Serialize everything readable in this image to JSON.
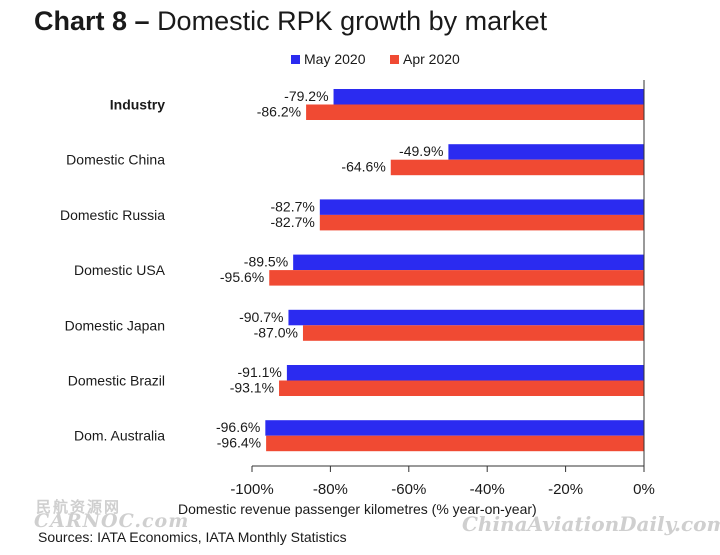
{
  "title": {
    "prefix": "Chart 8 –",
    "text": "Domestic RPK growth by market"
  },
  "sources": "Sources: IATA Economics, IATA Monthly Statistics",
  "watermarks": {
    "cn": "民航资源网",
    "carnoc": "CARNOC.com",
    "site": "ChinaAviationDaily.com"
  },
  "colors": {
    "may": "#2b2bf0",
    "apr": "#f04a33",
    "axis": "#333333",
    "text": "#1a1a1a"
  },
  "chart_data": {
    "type": "bar",
    "orientation": "horizontal",
    "xlabel": "Domestic revenue passenger kilometres (% year-on-year)",
    "xlim": [
      -100,
      0
    ],
    "xticks": [
      -100,
      -80,
      -60,
      -40,
      -20,
      0
    ],
    "xtick_labels": [
      "-100%",
      "-80%",
      "-60%",
      "-40%",
      "-20%",
      "0%"
    ],
    "legend_position": "top",
    "categories": [
      "Industry",
      "Domestic China",
      "Domestic Russia",
      "Domestic USA",
      "Domestic Japan",
      "Domestic Brazil",
      "Dom. Australia"
    ],
    "bold_categories": [
      "Industry"
    ],
    "series": [
      {
        "name": "May 2020",
        "color_key": "may",
        "values": [
          -79.2,
          -49.9,
          -82.7,
          -89.5,
          -90.7,
          -91.1,
          -96.6
        ],
        "labels": [
          "-79.2%",
          "-49.9%",
          "-82.7%",
          "-89.5%",
          "-90.7%",
          "-91.1%",
          "-96.6%"
        ]
      },
      {
        "name": "Apr 2020",
        "color_key": "apr",
        "values": [
          -86.2,
          -64.6,
          -82.7,
          -95.6,
          -87.0,
          -93.1,
          -96.4
        ],
        "labels": [
          "-86.2%",
          "-64.6%",
          "-82.7%",
          "-95.6%",
          "-87.0%",
          "-93.1%",
          "-96.4%"
        ]
      }
    ]
  }
}
